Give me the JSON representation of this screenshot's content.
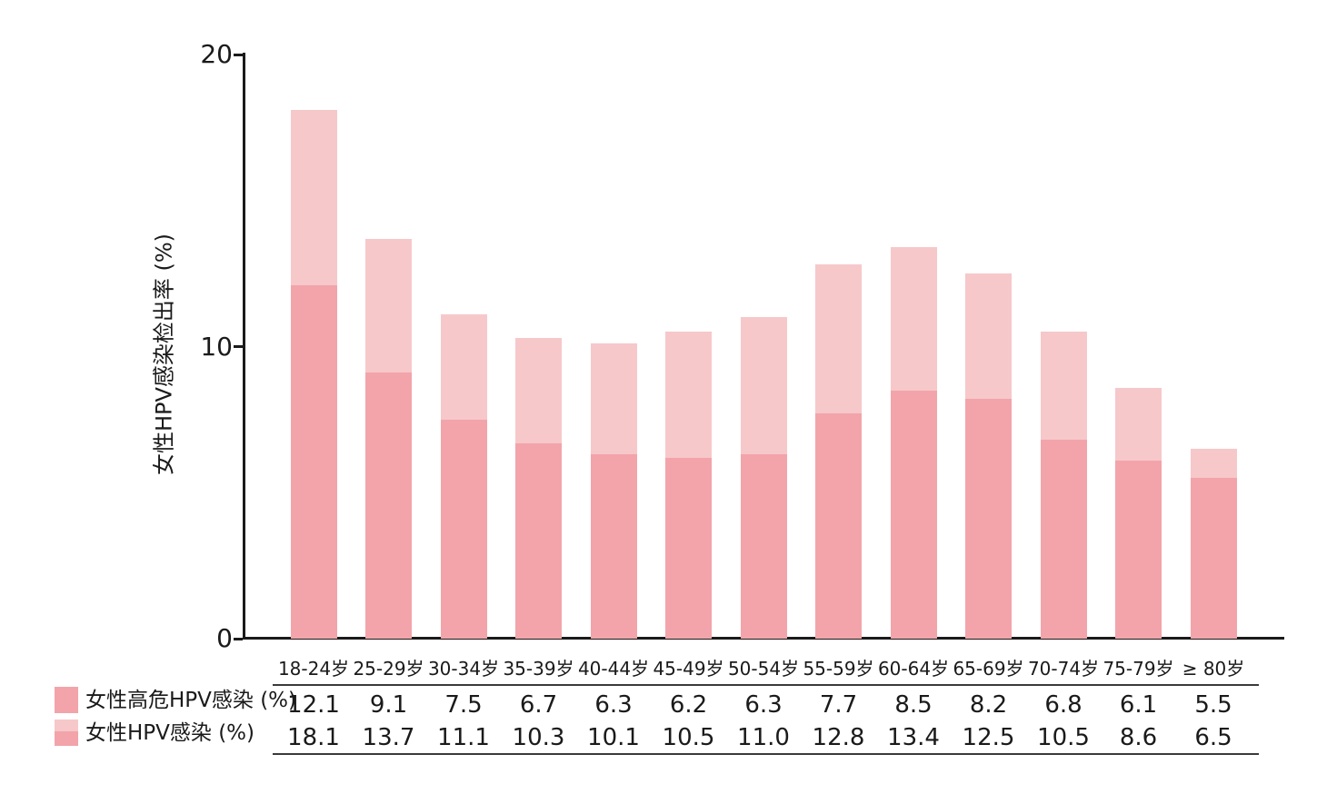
{
  "chart_data": {
    "type": "bar",
    "subtype": "overlaid-bars-with-data-table",
    "categories": [
      "18-24岁",
      "25-29岁",
      "30-34岁",
      "35-39岁",
      "40-44岁",
      "45-49岁",
      "50-54岁",
      "55-59岁",
      "60-64岁",
      "65-69岁",
      "70-74岁",
      "75-79岁",
      "≥ 80岁"
    ],
    "series": [
      {
        "name": "女性高危HPV感染 (%)",
        "values": [
          12.1,
          9.1,
          7.5,
          6.7,
          6.3,
          6.2,
          6.3,
          7.7,
          8.5,
          8.2,
          6.8,
          6.1,
          5.5
        ],
        "color": "#F2A4AA"
      },
      {
        "name": "女性HPV感染 (%)",
        "values": [
          18.1,
          13.7,
          11.1,
          10.3,
          10.1,
          10.5,
          11.0,
          12.8,
          13.4,
          12.5,
          10.5,
          8.6,
          6.5
        ],
        "color": "#F6C8CA"
      }
    ],
    "title": "",
    "xlabel": "",
    "ylabel": "女性HPV感染检出率 (%)",
    "ylim": [
      0,
      20
    ],
    "yticks": [
      0,
      10,
      20
    ],
    "grid": false,
    "legend_position": "bottom-left",
    "colors": {
      "high_risk_bar": "#F2A4AA",
      "total_bar": "#F6C8CA",
      "axis": "#1a1a1a",
      "table_rule": "#3a3a3a",
      "text": "#1a1a1a",
      "background": "#ffffff"
    }
  }
}
